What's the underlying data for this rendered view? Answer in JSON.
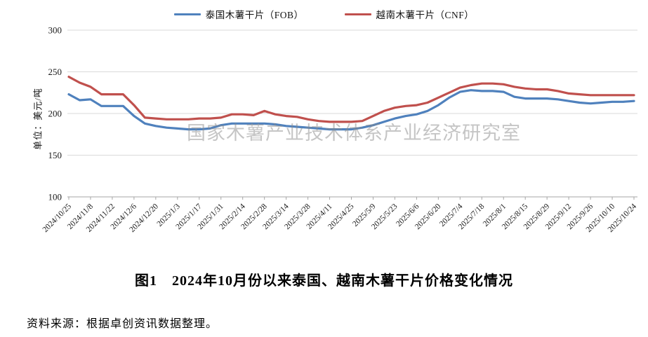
{
  "legend": {
    "series": [
      {
        "label": "泰国木薯干片（FOB）",
        "color": "#4f81bd"
      },
      {
        "label": "越南木薯干片（CNF）",
        "color": "#c0504d"
      }
    ]
  },
  "y_axis_title": "单位：美元/吨",
  "watermark": "国家木薯产业技术体系产业经济研究室",
  "figure_title": "图1　2024年10月份以来泰国、越南木薯干片价格变化情况",
  "source_note": "资料来源：根据卓创资讯数据整理。",
  "chart_data": {
    "type": "line",
    "title": "图1 2024年10月份以来泰国、越南木薯干片价格变化情况",
    "ylabel": "单位：美元/吨",
    "ylim": [
      100,
      300
    ],
    "y_ticks": [
      300,
      250,
      200,
      150,
      100
    ],
    "grid": true,
    "legend_position": "top",
    "x": [
      "2024/10/25",
      "2024/11/1",
      "2024/11/8",
      "2024/11/15",
      "2024/11/22",
      "2024/11/29",
      "2024/12/6",
      "2024/12/13",
      "2024/12/20",
      "2024/12/27",
      "2025/1/3",
      "2025/1/10",
      "2025/1/17",
      "2025/1/24",
      "2025/1/31",
      "2025/2/7",
      "2025/2/14",
      "2025/2/21",
      "2025/2/28",
      "2025/3/7",
      "2025/3/14",
      "2025/3/21",
      "2025/3/28",
      "2025/4/4",
      "2025/4/11",
      "2025/4/18",
      "2025/4/25",
      "2025/5/2",
      "2025/5/9",
      "2025/5/16",
      "2025/5/23",
      "2025/5/30",
      "2025/6/6",
      "2025/6/13",
      "2025/6/20",
      "2025/6/27",
      "2025/7/4",
      "2025/7/11",
      "2025/7/18",
      "2025/7/25",
      "2025/8/1",
      "2025/8/8",
      "2025/8/15",
      "2025/8/22",
      "2025/8/29",
      "2025/9/5",
      "2025/9/12",
      "2025/9/19",
      "2025/9/26",
      "2025/10/3",
      "2025/10/10",
      "2025/10/17",
      "2025/10/24"
    ],
    "x_tick_labels": [
      "2024/10/25",
      "2024/11/8",
      "2024/11/22",
      "2024/12/6",
      "2024/12/20",
      "2025/1/3",
      "2025/1/17",
      "2025/1/31",
      "2025/2/14",
      "2025/2/28",
      "2025/3/14",
      "2025/3/28",
      "2025/4/11",
      "2025/4/25",
      "2025/5/9",
      "2025/5/23",
      "2025/6/6",
      "2025/6/20",
      "2025/7/4",
      "2025/7/18",
      "2025/8/1",
      "2025/8/15",
      "2025/8/29",
      "2025/9/12",
      "2025/9/26",
      "2025/10/10",
      "2025/10/24"
    ],
    "series": [
      {
        "name": "泰国木薯干片（FOB）",
        "color": "#4f81bd",
        "values": [
          223,
          216,
          217,
          209,
          209,
          209,
          197,
          188,
          185,
          183,
          182,
          181,
          181,
          182,
          186,
          188,
          188,
          188,
          188,
          187,
          185,
          184,
          183,
          182,
          181,
          181,
          181,
          183,
          186,
          190,
          194,
          197,
          199,
          203,
          210,
          219,
          226,
          228,
          227,
          227,
          226,
          220,
          218,
          218,
          218,
          217,
          215,
          213,
          212,
          213,
          214,
          214,
          215
        ]
      },
      {
        "name": "越南木薯干片（CNF）",
        "color": "#c0504d",
        "values": [
          244,
          237,
          232,
          223,
          223,
          223,
          210,
          195,
          194,
          193,
          193,
          193,
          194,
          194,
          195,
          199,
          199,
          198,
          203,
          199,
          197,
          196,
          193,
          191,
          190,
          190,
          190,
          191,
          197,
          203,
          207,
          209,
          210,
          213,
          219,
          225,
          231,
          234,
          236,
          236,
          235,
          232,
          230,
          229,
          229,
          227,
          224,
          223,
          222,
          222,
          222,
          222,
          222
        ]
      }
    ]
  }
}
